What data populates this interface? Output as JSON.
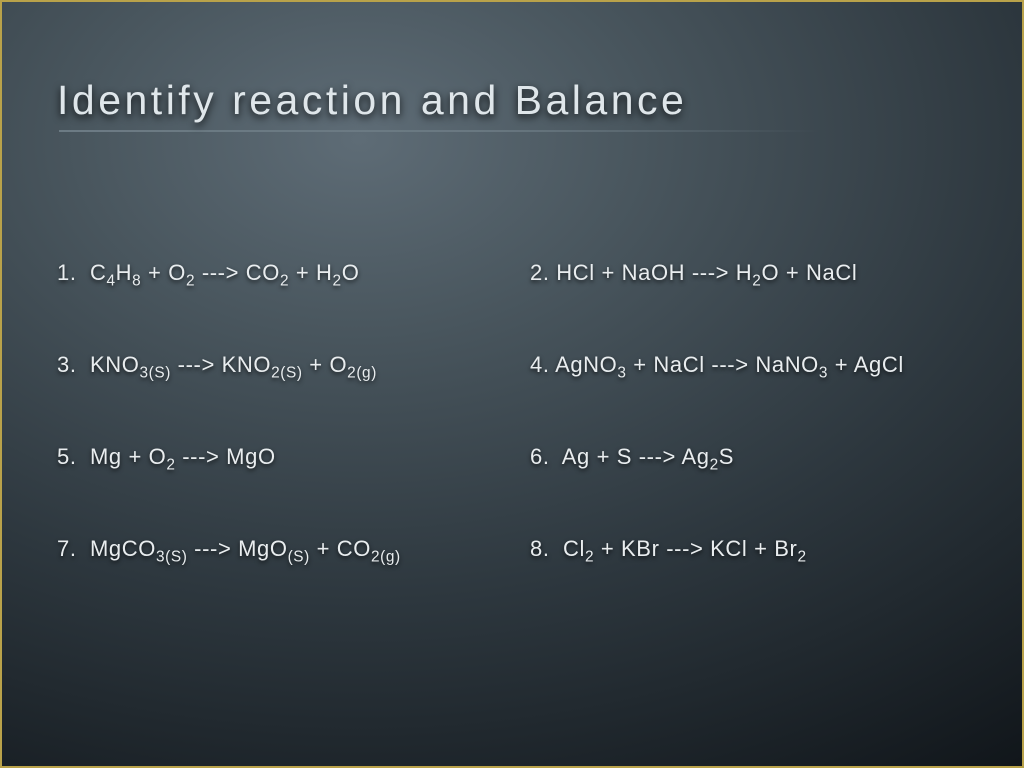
{
  "slide": {
    "title": "Identify reaction and Balance",
    "title_fontsize": 41,
    "title_color": "#dfe6ea",
    "underline_color": "#6e7d86",
    "background_gradient": [
      "#5e6c76",
      "#4a575f",
      "#2d373e",
      "#161c21",
      "#0b0f13"
    ],
    "border_color": "#b9a24a",
    "text_color": "#e9edef",
    "eq_fontsize": 22,
    "equations": [
      {
        "n": "1.",
        "html": "C<sub>4</sub>H<sub>8</sub> + O<sub>2</sub> ---> CO<sub>2</sub> + H<sub>2</sub>O"
      },
      {
        "n": "2.",
        "html": "HCl + NaOH ---> H<sub>2</sub>O + NaCl"
      },
      {
        "n": "3.",
        "html": "KNO<sub>3(S)</sub> ---> KNO<sub>2(S)</sub> + O<sub>2(g)</sub>"
      },
      {
        "n": "4.",
        "html": "AgNO<sub>3</sub> + NaCl ---> NaNO<sub>3</sub> + AgCl"
      },
      {
        "n": "5.",
        "html": "Mg + O<sub>2</sub> ---> MgO"
      },
      {
        "n": "6.",
        "html": "Ag + S ---> Ag<sub>2</sub>S"
      },
      {
        "n": "7.",
        "html": "MgCO<sub>3(S)</sub> ---> MgO<sub>(S)</sub> + CO<sub>2(g)</sub>"
      },
      {
        "n": "8.",
        "html": "Cl<sub>2</sub> + KBr ---> KCl + Br<sub>2</sub>"
      }
    ]
  }
}
